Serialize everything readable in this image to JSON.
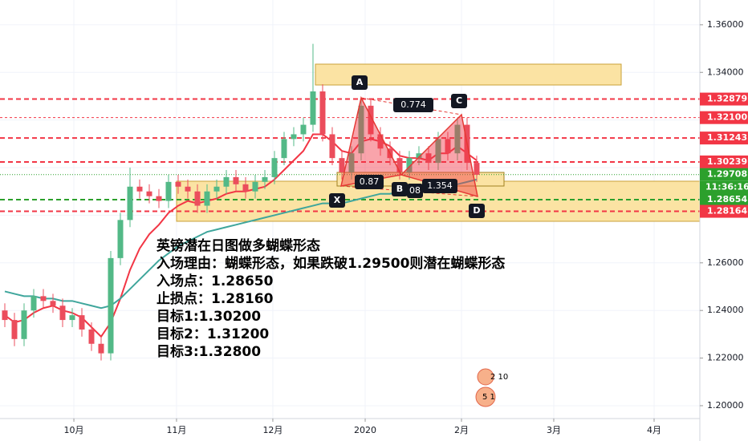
{
  "chart_data": {
    "type": "candlestick",
    "x": [
      0,
      1,
      2,
      3,
      4,
      5,
      6,
      7,
      8,
      9,
      10,
      11,
      12,
      13,
      14,
      15,
      16,
      17,
      18,
      19,
      20,
      21,
      22,
      23,
      24,
      25,
      26,
      27,
      28,
      29,
      30,
      31,
      32,
      33,
      34,
      35,
      36,
      37,
      38,
      39,
      40,
      41,
      42,
      43,
      44,
      45,
      46,
      47,
      48,
      49
    ],
    "open": [
      1.24,
      1.236,
      1.228,
      1.24,
      1.246,
      1.244,
      1.242,
      1.236,
      1.238,
      1.232,
      1.226,
      1.222,
      1.262,
      1.278,
      1.292,
      1.29,
      1.288,
      1.286,
      1.294,
      1.292,
      1.29,
      1.284,
      1.29,
      1.292,
      1.296,
      1.293,
      1.29,
      1.294,
      1.296,
      1.304,
      1.312,
      1.314,
      1.318,
      1.332,
      1.314,
      1.304,
      1.298,
      1.306,
      1.326,
      1.314,
      1.308,
      1.304,
      1.298,
      1.304,
      1.306,
      1.302,
      1.312,
      1.306,
      1.318,
      1.302
    ],
    "high": [
      1.243,
      1.239,
      1.243,
      1.249,
      1.249,
      1.247,
      1.245,
      1.241,
      1.241,
      1.235,
      1.229,
      1.265,
      1.281,
      1.3,
      1.295,
      1.293,
      1.291,
      1.297,
      1.297,
      1.295,
      1.293,
      1.293,
      1.295,
      1.299,
      1.299,
      1.296,
      1.297,
      1.299,
      1.307,
      1.315,
      1.317,
      1.321,
      1.352,
      1.335,
      1.317,
      1.307,
      1.309,
      1.329,
      1.329,
      1.317,
      1.311,
      1.307,
      1.307,
      1.309,
      1.309,
      1.315,
      1.315,
      1.321,
      1.321,
      1.305
    ],
    "low": [
      1.233,
      1.225,
      1.225,
      1.237,
      1.241,
      1.239,
      1.233,
      1.233,
      1.229,
      1.223,
      1.219,
      1.219,
      1.259,
      1.275,
      1.287,
      1.285,
      1.283,
      1.283,
      1.289,
      1.287,
      1.281,
      1.281,
      1.287,
      1.289,
      1.29,
      1.287,
      1.287,
      1.291,
      1.293,
      1.301,
      1.309,
      1.311,
      1.315,
      1.311,
      1.301,
      1.295,
      1.295,
      1.303,
      1.311,
      1.305,
      1.301,
      1.295,
      1.295,
      1.301,
      1.299,
      1.299,
      1.303,
      1.303,
      1.299,
      1.294
    ],
    "close": [
      1.236,
      1.228,
      1.24,
      1.246,
      1.244,
      1.242,
      1.236,
      1.238,
      1.232,
      1.226,
      1.222,
      1.262,
      1.278,
      1.292,
      1.29,
      1.288,
      1.286,
      1.294,
      1.292,
      1.29,
      1.284,
      1.29,
      1.292,
      1.296,
      1.293,
      1.29,
      1.294,
      1.296,
      1.304,
      1.312,
      1.314,
      1.318,
      1.332,
      1.314,
      1.304,
      1.298,
      1.306,
      1.326,
      1.314,
      1.308,
      1.304,
      1.298,
      1.304,
      1.306,
      1.302,
      1.312,
      1.306,
      1.318,
      1.302,
      1.297
    ],
    "up_color": "#53b987",
    "down_color": "#eb4d5c",
    "overlays": [
      {
        "color": "#f23645",
        "values": [
          1.238,
          1.235,
          1.236,
          1.239,
          1.241,
          1.242,
          1.24,
          1.239,
          1.237,
          1.233,
          1.229,
          1.235,
          1.245,
          1.257,
          1.266,
          1.272,
          1.276,
          1.281,
          1.284,
          1.286,
          1.285,
          1.286,
          1.287,
          1.289,
          1.29,
          1.29,
          1.291,
          1.292,
          1.295,
          1.299,
          1.303,
          1.307,
          1.314,
          1.314,
          1.311,
          1.307,
          1.306,
          1.311,
          1.312,
          1.311,
          1.309,
          1.305,
          1.304,
          1.304,
          1.303,
          1.306,
          1.306,
          1.309,
          1.306,
          1.303
        ]
      },
      {
        "color": "#3fa69c",
        "values": [
          1.248,
          1.247,
          1.246,
          1.246,
          1.245,
          1.245,
          1.244,
          1.244,
          1.243,
          1.242,
          1.241,
          1.242,
          1.245,
          1.249,
          1.253,
          1.257,
          1.261,
          1.264,
          1.267,
          1.269,
          1.271,
          1.273,
          1.274,
          1.275,
          1.276,
          1.277,
          1.278,
          1.279,
          1.28,
          1.281,
          1.282,
          1.283,
          1.284,
          1.285,
          1.285,
          1.285,
          1.286,
          1.287,
          1.288,
          1.289,
          1.289,
          1.29,
          1.29,
          1.291,
          1.291,
          1.292,
          1.292,
          1.293,
          1.294,
          1.295
        ]
      }
    ],
    "xlim": [
      -0.5,
      72.17
    ],
    "xticks": [
      {
        "value": 7.17,
        "label": "10月"
      },
      {
        "value": 17.83,
        "label": "11月"
      },
      {
        "value": 27.83,
        "label": "12月"
      },
      {
        "value": 37.42,
        "label": "2020"
      },
      {
        "value": 47.42,
        "label": "2月"
      },
      {
        "value": 57,
        "label": "3月"
      },
      {
        "value": 67.42,
        "label": "4月"
      }
    ],
    "ylim": [
      1.1946,
      1.3704
    ],
    "yticks": [
      {
        "value": 1.36,
        "label": "1.36000"
      },
      {
        "value": 1.34,
        "label": "1.34000"
      },
      {
        "value": 1.32,
        "label": "1.32000"
      },
      {
        "value": 1.3,
        "label": "1.30000"
      },
      {
        "value": 1.28,
        "label": "1.28000"
      },
      {
        "value": 1.26,
        "label": "1.26000"
      },
      {
        "value": 1.24,
        "label": "1.24000"
      },
      {
        "value": 1.22,
        "label": "1.22000"
      },
      {
        "value": 1.2,
        "label": "1.20000"
      }
    ],
    "grid": true,
    "levels": [
      {
        "value": 1.32879,
        "label": "1.32879",
        "color": "#f23645",
        "style": "dashed"
      },
      {
        "value": 1.321,
        "label": "1.32100",
        "color": "#f23645",
        "style": "thin"
      },
      {
        "value": 1.31243,
        "label": "1.31243",
        "color": "#f23645",
        "style": "dashed"
      },
      {
        "value": 1.30239,
        "label": "1.30239",
        "color": "#f23645",
        "style": "dashed"
      },
      {
        "value": 1.29708,
        "label": "1.29708",
        "color": "#2ca02c",
        "style": "dotted"
      },
      {
        "value": 1.28654,
        "label": "1.28654",
        "color": "#2ca02c",
        "style": "dashed"
      },
      {
        "value": 1.28164,
        "label": "1.28164",
        "color": "#f23645",
        "style": "dashed"
      }
    ],
    "countdown": "11:36:16",
    "annotation": [
      "英镑潜在日图做多蝴蝶形态",
      "入场理由：蝴蝶形态，如果跌破1.29500则潜在蝴蝶形态",
      "入场点：1.28650",
      "止损点：1.28160",
      "目标1:1.30200",
      "目标2：1.31200",
      "目标3:1.32800"
    ],
    "pattern_points": [
      "X",
      "A",
      "B",
      "C",
      "D"
    ],
    "pattern_ratios": [
      "0.774",
      "0.87",
      "08",
      "1.354"
    ],
    "markers": [
      "2 10",
      "5 1"
    ]
  }
}
